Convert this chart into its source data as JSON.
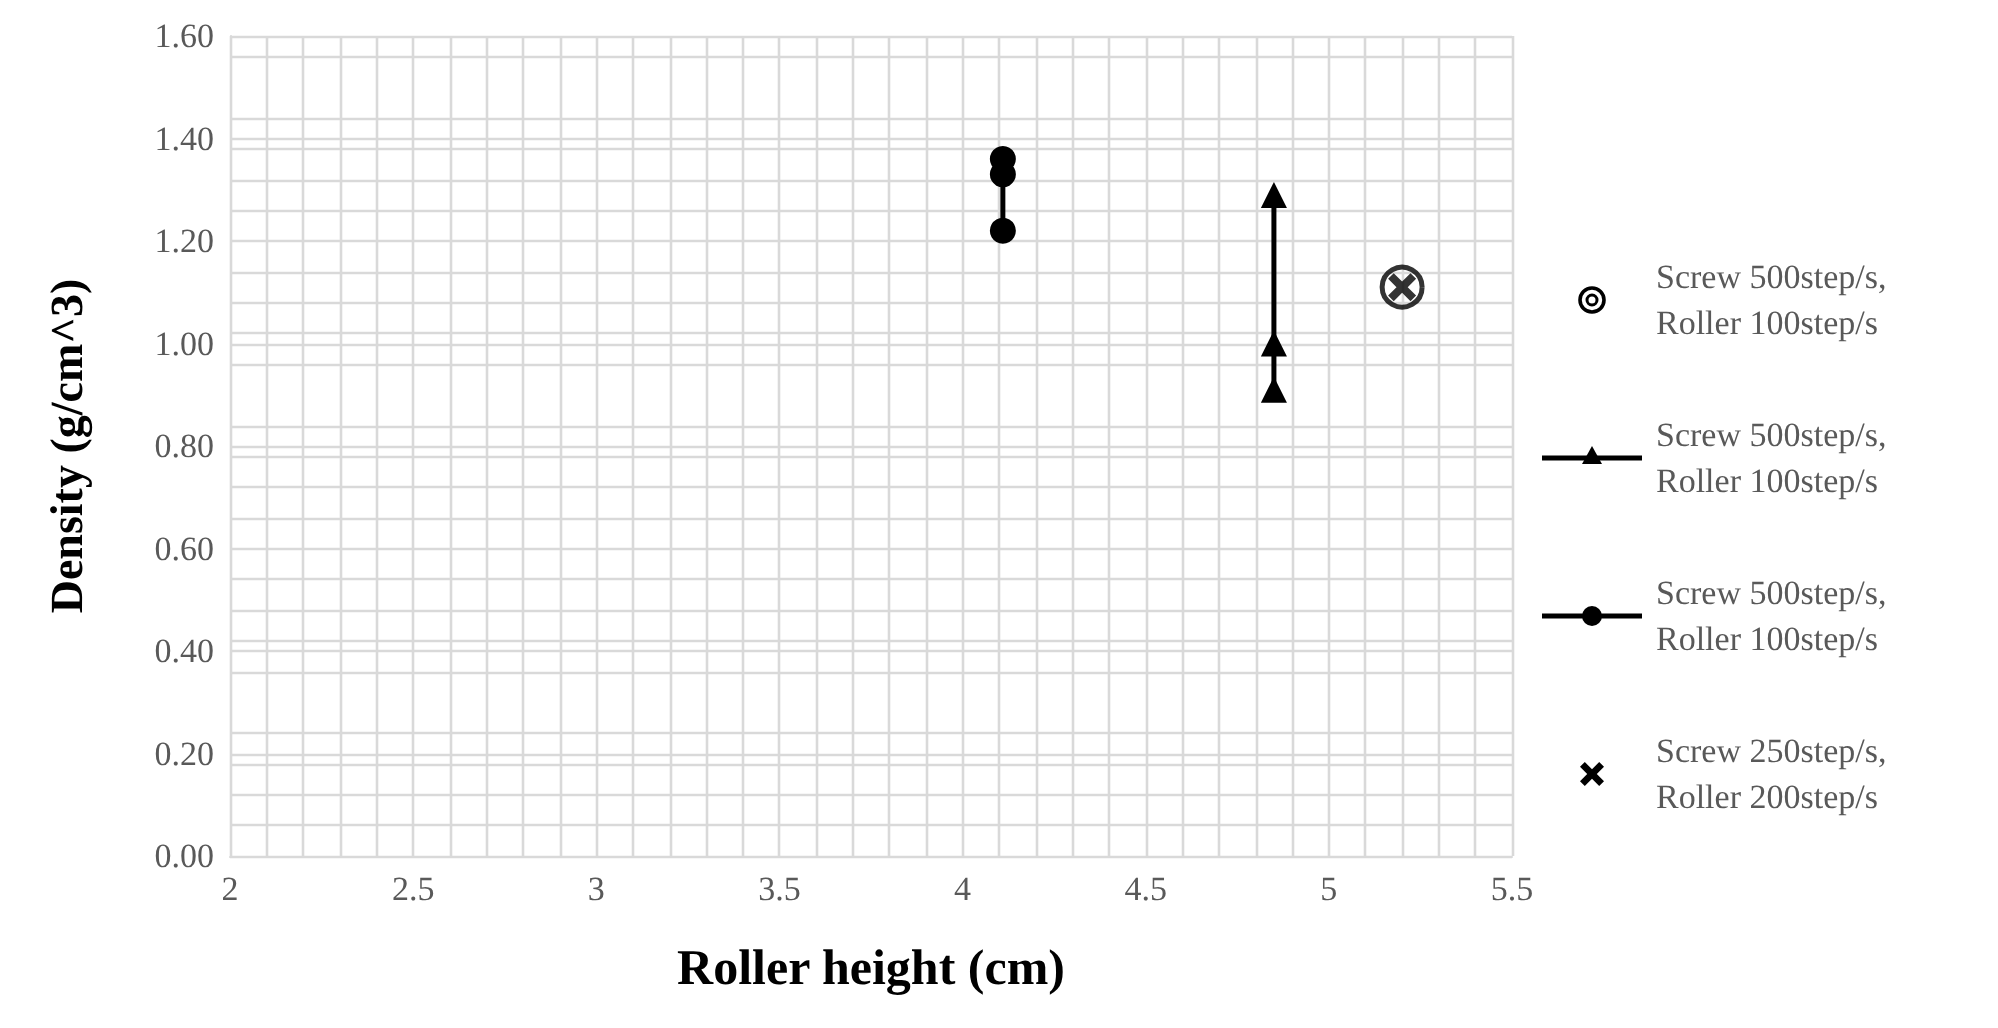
{
  "chart_data": {
    "type": "scatter",
    "xlabel": "Roller height (cm)",
    "ylabel": "Density (g/cm^3)",
    "xlim": [
      2,
      5.5
    ],
    "xticks": [
      2,
      2.5,
      3,
      3.5,
      4,
      4.5,
      5,
      5.5
    ],
    "ylim": [
      0,
      1.6
    ],
    "yticks": [
      {
        "value": 0,
        "label": "0.00"
      },
      {
        "value": 0.2,
        "label": "0.20"
      },
      {
        "value": 0.4,
        "label": "0.40"
      },
      {
        "value": 0.6,
        "label": "0.60"
      },
      {
        "value": 0.8,
        "label": "0.80"
      },
      {
        "value": 1.0,
        "label": "1.00"
      },
      {
        "value": 1.2,
        "label": "1.20"
      },
      {
        "value": 1.4,
        "label": "1.40"
      },
      {
        "value": 1.6,
        "label": "1.60"
      }
    ],
    "grid": true,
    "legend": "right",
    "series": [
      {
        "name": "Screw 500step/s, Roller 100step/s",
        "marker": "circle",
        "color": "#000000",
        "x": [
          5.2
        ],
        "values": [
          1.11
        ]
      },
      {
        "name": "Screw 500step/s, Roller 100step/s",
        "type": "line",
        "marker": "triangle",
        "line_style": "solid",
        "color": "#000000",
        "x": [
          4.85,
          4.85,
          4.85
        ],
        "values": [
          1.29,
          1.0,
          0.91
        ]
      },
      {
        "name": "Screw 500step/s, Roller 100step/s",
        "type": "line",
        "marker": "circle",
        "line_style": "solid",
        "color": "#000000",
        "x": [
          4.11,
          4.11,
          4.11
        ],
        "values": [
          1.36,
          1.33,
          1.22
        ]
      },
      {
        "name": "Screw 250step/s, Roller 200step/s",
        "marker": "cross",
        "color": "#000000",
        "x": [
          5.2
        ],
        "values": [
          1.11
        ]
      }
    ]
  }
}
